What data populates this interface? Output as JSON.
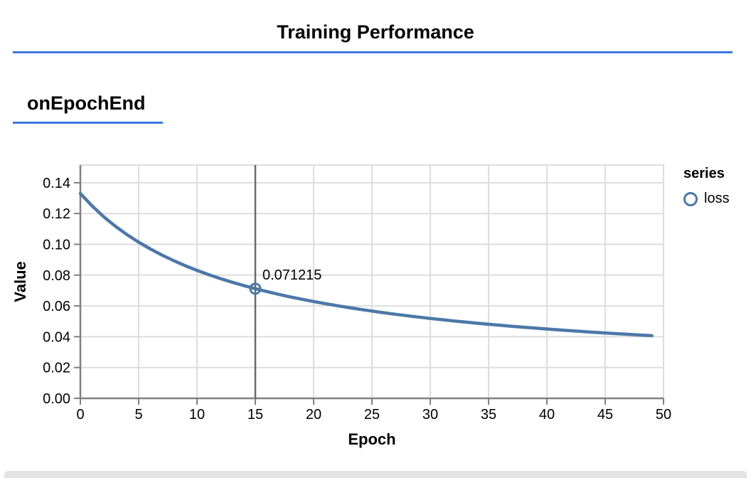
{
  "header": {
    "title": "Training Performance"
  },
  "section": {
    "title": "onEpochEnd"
  },
  "legend": {
    "title": "series",
    "items": [
      {
        "label": "loss",
        "symbol": "circle-outline-icon",
        "color": "#4c78a8"
      }
    ]
  },
  "colors": {
    "accent_rule": "#3b78dd",
    "line": "#4c78a8",
    "grid": "#dddddd",
    "axis": "#808080",
    "crosshair": "#6a6a6a",
    "text": "#000000",
    "bottom_bar": "#e3e3e3"
  },
  "chart_data": {
    "type": "line",
    "title": "",
    "xlabel": "Epoch",
    "ylabel": "Value",
    "xlim": [
      0,
      50
    ],
    "ylim": [
      0,
      0.1515
    ],
    "grid": true,
    "legend_position": "right",
    "x_tick_labels": [
      "0",
      "5",
      "10",
      "15",
      "20",
      "25",
      "30",
      "35",
      "40",
      "45",
      "50"
    ],
    "y_tick_labels": [
      "0.00",
      "0.02",
      "0.04",
      "0.06",
      "0.08",
      "0.10",
      "0.12",
      "0.14"
    ],
    "highlight": {
      "x": 15,
      "y": 0.071215,
      "label": "0.071215"
    },
    "series": [
      {
        "name": "loss",
        "points": [
          [
            0,
            0.133035
          ],
          [
            1,
            0.124973
          ],
          [
            2,
            0.117941
          ],
          [
            3,
            0.111755
          ],
          [
            4,
            0.10627
          ],
          [
            5,
            0.101373
          ],
          [
            6,
            0.096976
          ],
          [
            7,
            0.093004
          ],
          [
            8,
            0.089399
          ],
          [
            9,
            0.086113
          ],
          [
            10,
            0.083105
          ],
          [
            11,
            0.080341
          ],
          [
            12,
            0.077793
          ],
          [
            13,
            0.075435
          ],
          [
            14,
            0.073249
          ],
          [
            15,
            0.071215
          ],
          [
            16,
            0.069318
          ],
          [
            17,
            0.067546
          ],
          [
            18,
            0.065885
          ],
          [
            19,
            0.064326
          ],
          [
            20,
            0.06286
          ],
          [
            21,
            0.061478
          ],
          [
            22,
            0.060174
          ],
          [
            23,
            0.058941
          ],
          [
            24,
            0.057774
          ],
          [
            25,
            0.056667
          ],
          [
            26,
            0.055616
          ],
          [
            27,
            0.054616
          ],
          [
            28,
            0.053665
          ],
          [
            29,
            0.052758
          ],
          [
            30,
            0.051893
          ],
          [
            31,
            0.051066
          ],
          [
            32,
            0.050276
          ],
          [
            33,
            0.04952
          ],
          [
            34,
            0.048795
          ],
          [
            35,
            0.0481
          ],
          [
            36,
            0.047433
          ],
          [
            37,
            0.046793
          ],
          [
            38,
            0.046177
          ],
          [
            39,
            0.045585
          ],
          [
            40,
            0.045015
          ],
          [
            41,
            0.044466
          ],
          [
            42,
            0.043936
          ],
          [
            43,
            0.043425
          ],
          [
            44,
            0.042932
          ],
          [
            45,
            0.042456
          ],
          [
            46,
            0.041995
          ],
          [
            47,
            0.04155
          ],
          [
            48,
            0.041119
          ],
          [
            49,
            0.040702
          ]
        ]
      }
    ]
  }
}
